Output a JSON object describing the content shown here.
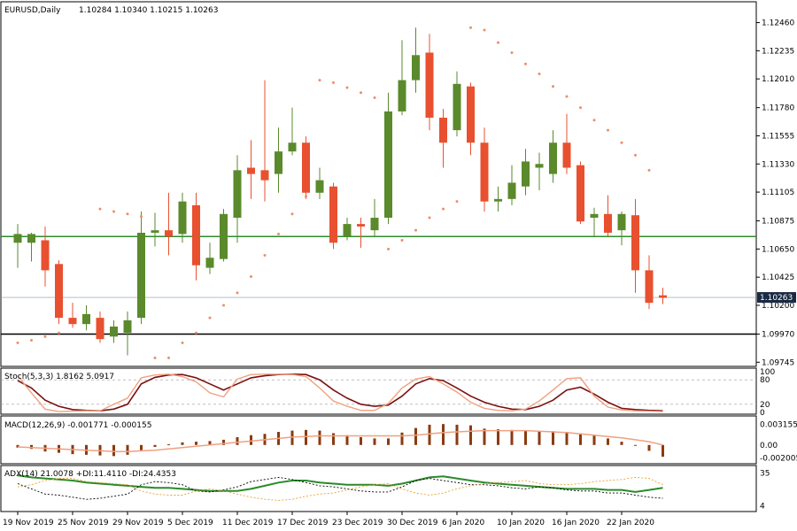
{
  "colors": {
    "bull": "#5a8a2c",
    "bear": "#e8502f",
    "sar": "#e8906a",
    "stoch_main": "#7a1010",
    "stoch_signal": "#f0a080",
    "macd_hist": "#8b3a10",
    "macd_signal": "#f0a080",
    "adx": "#2a8a2a",
    "plus_di": "#000000",
    "minus_di": "#e8a030",
    "hline_green": "#2e8b2e",
    "hline_black": "#000000",
    "frame": "#000000",
    "grid": "#999999"
  },
  "chart_data": [
    {
      "type": "candlestick",
      "title": "EURUSD,Daily",
      "ohlc_text": "1.10284 1.10340 1.10215 1.10263",
      "price_axis_ticks": [
        "1.12460",
        "1.12235",
        "1.12010",
        "1.11780",
        "1.11555",
        "1.11330",
        "1.11105",
        "1.10875",
        "1.10650",
        "1.10425",
        "1.10200",
        "1.09970",
        "1.09745"
      ],
      "ylim": [
        1.0974,
        1.1257
      ],
      "current_price": 1.10263,
      "current_price_label": "1.10263",
      "x_labels": [
        {
          "i": 0,
          "label": "19 Nov 2019"
        },
        {
          "i": 4,
          "label": "25 Nov 2019"
        },
        {
          "i": 8,
          "label": "29 Nov 2019"
        },
        {
          "i": 12,
          "label": "5 Dec 2019"
        },
        {
          "i": 16,
          "label": "11 Dec 2019"
        },
        {
          "i": 20,
          "label": "17 Dec 2019"
        },
        {
          "i": 24,
          "label": "23 Dec 2019"
        },
        {
          "i": 28,
          "label": "30 Dec 2019"
        },
        {
          "i": 32,
          "label": "6 Jan 2020"
        },
        {
          "i": 36,
          "label": "10 Jan 2020"
        },
        {
          "i": 40,
          "label": "16 Jan 2020"
        },
        {
          "i": 44,
          "label": "22 Jan 2020"
        }
      ],
      "horizontal_levels": [
        {
          "price": 1.1075,
          "color": "hline_green"
        },
        {
          "price": 1.0997,
          "color": "hline_black"
        }
      ],
      "candles": [
        {
          "o": 1.107,
          "h": 1.1085,
          "l": 1.105,
          "c": 1.1077
        },
        {
          "o": 1.107,
          "h": 1.1078,
          "l": 1.1055,
          "c": 1.1077
        },
        {
          "o": 1.1072,
          "h": 1.1083,
          "l": 1.1035,
          "c": 1.1048
        },
        {
          "o": 1.1053,
          "h": 1.1056,
          "l": 1.1005,
          "c": 1.101
        },
        {
          "o": 1.101,
          "h": 1.1022,
          "l": 1.1002,
          "c": 1.1005
        },
        {
          "o": 1.1005,
          "h": 1.102,
          "l": 1.1,
          "c": 1.1013
        },
        {
          "o": 1.101,
          "h": 1.1015,
          "l": 1.099,
          "c": 1.0993
        },
        {
          "o": 1.0995,
          "h": 1.1008,
          "l": 1.099,
          "c": 1.1003
        },
        {
          "o": 1.0998,
          "h": 1.1015,
          "l": 1.098,
          "c": 1.1008
        },
        {
          "o": 1.101,
          "h": 1.1095,
          "l": 1.1005,
          "c": 1.1078
        },
        {
          "o": 1.1078,
          "h": 1.1094,
          "l": 1.1067,
          "c": 1.108
        },
        {
          "o": 1.108,
          "h": 1.111,
          "l": 1.106,
          "c": 1.1075
        },
        {
          "o": 1.1077,
          "h": 1.111,
          "l": 1.107,
          "c": 1.1103
        },
        {
          "o": 1.11,
          "h": 1.111,
          "l": 1.104,
          "c": 1.1052
        },
        {
          "o": 1.105,
          "h": 1.107,
          "l": 1.1045,
          "c": 1.1058
        },
        {
          "o": 1.1057,
          "h": 1.1097,
          "l": 1.1055,
          "c": 1.1093
        },
        {
          "o": 1.109,
          "h": 1.114,
          "l": 1.107,
          "c": 1.1128
        },
        {
          "o": 1.113,
          "h": 1.1152,
          "l": 1.1105,
          "c": 1.1125
        },
        {
          "o": 1.1128,
          "h": 1.12,
          "l": 1.1103,
          "c": 1.112
        },
        {
          "o": 1.1125,
          "h": 1.1162,
          "l": 1.111,
          "c": 1.1143
        },
        {
          "o": 1.1143,
          "h": 1.1178,
          "l": 1.114,
          "c": 1.115
        },
        {
          "o": 1.115,
          "h": 1.1155,
          "l": 1.1105,
          "c": 1.111
        },
        {
          "o": 1.111,
          "h": 1.113,
          "l": 1.1105,
          "c": 1.112
        },
        {
          "o": 1.1115,
          "h": 1.1118,
          "l": 1.1065,
          "c": 1.107
        },
        {
          "o": 1.1075,
          "h": 1.109,
          "l": 1.1072,
          "c": 1.1085
        },
        {
          "o": 1.1085,
          "h": 1.109,
          "l": 1.1066,
          "c": 1.1083
        },
        {
          "o": 1.108,
          "h": 1.1105,
          "l": 1.1075,
          "c": 1.109
        },
        {
          "o": 1.109,
          "h": 1.119,
          "l": 1.1085,
          "c": 1.1175
        },
        {
          "o": 1.1175,
          "h": 1.1232,
          "l": 1.1172,
          "c": 1.12
        },
        {
          "o": 1.12,
          "h": 1.1242,
          "l": 1.119,
          "c": 1.122
        },
        {
          "o": 1.1222,
          "h": 1.1237,
          "l": 1.116,
          "c": 1.117
        },
        {
          "o": 1.117,
          "h": 1.1177,
          "l": 1.113,
          "c": 1.115
        },
        {
          "o": 1.116,
          "h": 1.1207,
          "l": 1.1155,
          "c": 1.1197
        },
        {
          "o": 1.1195,
          "h": 1.1198,
          "l": 1.114,
          "c": 1.115
        },
        {
          "o": 1.115,
          "h": 1.1162,
          "l": 1.1095,
          "c": 1.1103
        },
        {
          "o": 1.1103,
          "h": 1.1115,
          "l": 1.1095,
          "c": 1.1105
        },
        {
          "o": 1.1105,
          "h": 1.1132,
          "l": 1.11,
          "c": 1.1118
        },
        {
          "o": 1.1115,
          "h": 1.1145,
          "l": 1.1108,
          "c": 1.1135
        },
        {
          "o": 1.113,
          "h": 1.1142,
          "l": 1.1112,
          "c": 1.1133
        },
        {
          "o": 1.1125,
          "h": 1.116,
          "l": 1.1118,
          "c": 1.115
        },
        {
          "o": 1.115,
          "h": 1.1173,
          "l": 1.1125,
          "c": 1.113
        },
        {
          "o": 1.1132,
          "h": 1.1135,
          "l": 1.1085,
          "c": 1.1087
        },
        {
          "o": 1.109,
          "h": 1.1098,
          "l": 1.1075,
          "c": 1.1093
        },
        {
          "o": 1.1093,
          "h": 1.1108,
          "l": 1.1075,
          "c": 1.1078
        },
        {
          "o": 1.108,
          "h": 1.1095,
          "l": 1.1068,
          "c": 1.1093
        },
        {
          "o": 1.1092,
          "h": 1.1105,
          "l": 1.103,
          "c": 1.1048
        },
        {
          "o": 1.1048,
          "h": 1.106,
          "l": 1.1017,
          "c": 1.1022
        },
        {
          "o": 1.1028,
          "h": 1.1034,
          "l": 1.1021,
          "c": 1.1026
        }
      ],
      "parabolic_sar": [
        {
          "i": 0,
          "v": 1.099
        },
        {
          "i": 1,
          "v": 1.0992
        },
        {
          "i": 2,
          "v": 1.0995
        },
        {
          "i": 3,
          "v": 1.0998
        },
        {
          "i": 6,
          "v": 1.1097
        },
        {
          "i": 7,
          "v": 1.1095
        },
        {
          "i": 8,
          "v": 1.1093
        },
        {
          "i": 9,
          "v": 1.1091
        },
        {
          "i": 10,
          "v": 1.0978
        },
        {
          "i": 11,
          "v": 1.0978
        },
        {
          "i": 12,
          "v": 1.099
        },
        {
          "i": 13,
          "v": 1.0998
        },
        {
          "i": 14,
          "v": 1.101
        },
        {
          "i": 15,
          "v": 1.102
        },
        {
          "i": 16,
          "v": 1.103
        },
        {
          "i": 17,
          "v": 1.1043
        },
        {
          "i": 18,
          "v": 1.106
        },
        {
          "i": 19,
          "v": 1.1077
        },
        {
          "i": 20,
          "v": 1.1093
        },
        {
          "i": 21,
          "v": 1.1107
        },
        {
          "i": 22,
          "v": 1.12
        },
        {
          "i": 23,
          "v": 1.1198
        },
        {
          "i": 24,
          "v": 1.1194
        },
        {
          "i": 25,
          "v": 1.119
        },
        {
          "i": 26,
          "v": 1.1186
        },
        {
          "i": 27,
          "v": 1.1065
        },
        {
          "i": 28,
          "v": 1.1072
        },
        {
          "i": 29,
          "v": 1.108
        },
        {
          "i": 30,
          "v": 1.109
        },
        {
          "i": 31,
          "v": 1.1097
        },
        {
          "i": 32,
          "v": 1.1103
        },
        {
          "i": 33,
          "v": 1.1242
        },
        {
          "i": 34,
          "v": 1.124
        },
        {
          "i": 35,
          "v": 1.123
        },
        {
          "i": 36,
          "v": 1.1222
        },
        {
          "i": 37,
          "v": 1.1213
        },
        {
          "i": 38,
          "v": 1.1205
        },
        {
          "i": 39,
          "v": 1.1195
        },
        {
          "i": 40,
          "v": 1.1187
        },
        {
          "i": 41,
          "v": 1.1178
        },
        {
          "i": 42,
          "v": 1.1168
        },
        {
          "i": 43,
          "v": 1.116
        },
        {
          "i": 44,
          "v": 1.115
        },
        {
          "i": 45,
          "v": 1.114
        },
        {
          "i": 46,
          "v": 1.1128
        }
      ]
    },
    {
      "type": "line",
      "title": "Stoch(5,3,3) 1.8162 5.0917",
      "ylim": [
        0,
        100
      ],
      "levels": [
        80,
        20
      ],
      "axis_ticks": [
        "100",
        "80",
        "20",
        "0"
      ],
      "series": [
        {
          "name": "main",
          "color": "stoch_main",
          "values": [
            78,
            60,
            30,
            15,
            7,
            5,
            4,
            8,
            20,
            70,
            86,
            92,
            93,
            85,
            70,
            55,
            70,
            85,
            90,
            93,
            94,
            93,
            80,
            55,
            35,
            20,
            15,
            18,
            40,
            70,
            83,
            78,
            60,
            40,
            25,
            15,
            8,
            7,
            15,
            30,
            55,
            62,
            45,
            25,
            10,
            7,
            5,
            4
          ]
        },
        {
          "name": "signal",
          "color": "stoch_signal",
          "values": [
            90,
            48,
            8,
            2,
            3,
            4,
            4,
            20,
            35,
            85,
            92,
            94,
            88,
            75,
            48,
            38,
            82,
            93,
            94,
            94,
            93,
            88,
            60,
            28,
            15,
            5,
            5,
            22,
            60,
            82,
            88,
            70,
            50,
            25,
            10,
            5,
            4,
            8,
            28,
            55,
            83,
            85,
            40,
            13,
            6,
            4,
            3,
            2
          ]
        }
      ]
    },
    {
      "type": "bar",
      "title": "MACD(12,26,9) -0.001771 -0.000155",
      "ylim": [
        -0.0026,
        0.0039
      ],
      "axis_ticks": [
        {
          "v": 0.00315,
          "label": "0.003155"
        },
        {
          "v": 0.0,
          "label": "0.00"
        },
        {
          "v": -0.002005,
          "label": "-0.002005"
        }
      ],
      "histogram": [
        -0.0004,
        -0.0006,
        -0.001,
        -0.0012,
        -0.0014,
        -0.0015,
        -0.0016,
        -0.0017,
        -0.0015,
        -0.0008,
        -0.0003,
        0.0001,
        0.0004,
        0.0005,
        0.0006,
        0.0008,
        0.0012,
        0.0015,
        0.0017,
        0.002,
        0.0022,
        0.0023,
        0.0022,
        0.0018,
        0.0015,
        0.0012,
        0.001,
        0.001,
        0.0019,
        0.0026,
        0.0031,
        0.0032,
        0.0031,
        0.003,
        0.0025,
        0.0024,
        0.0023,
        0.0022,
        0.0021,
        0.0021,
        0.002,
        0.0018,
        0.0015,
        0.001,
        0.0005,
        -0.0001,
        -0.0009,
        -0.0018
      ],
      "signal": [
        -0.0003,
        -0.0004,
        -0.0005,
        -0.0006,
        -0.0007,
        -0.0008,
        -0.0009,
        -0.001,
        -0.001,
        -0.0009,
        -0.0008,
        -0.0006,
        -0.0004,
        -0.0002,
        0.0,
        0.0002,
        0.0004,
        0.0006,
        0.0008,
        0.001,
        0.0012,
        0.0013,
        0.0014,
        0.0014,
        0.0014,
        0.0014,
        0.0014,
        0.0014,
        0.0014,
        0.0015,
        0.0017,
        0.0019,
        0.002,
        0.0021,
        0.0022,
        0.0022,
        0.0022,
        0.0022,
        0.0021,
        0.002,
        0.0019,
        0.0017,
        0.0015,
        0.0013,
        0.0011,
        0.0008,
        0.0005,
        0.0
      ]
    },
    {
      "type": "line",
      "title": "ADX(14) 21.0078 +DI:11.4110 -DI:24.4353",
      "ylim": [
        0,
        39
      ],
      "axis_ticks": [
        {
          "v": 35,
          "label": "35"
        },
        {
          "v": 4,
          "label": "4"
        }
      ],
      "series": [
        {
          "name": "ADX",
          "color": "adx",
          "values": [
            33,
            31,
            30,
            29,
            28,
            26,
            25,
            24,
            23,
            22,
            21,
            21,
            20,
            19,
            18,
            18,
            18,
            20,
            23,
            26,
            28,
            28,
            26,
            25,
            24,
            24,
            24,
            23,
            25,
            28,
            31,
            32,
            30,
            28,
            26,
            25,
            24,
            23,
            22,
            21,
            20,
            20,
            20,
            19,
            19,
            17,
            19,
            21
          ]
        },
        {
          "name": "+DI",
          "color": "plus_di",
          "values": [
            25,
            20,
            15,
            14,
            12,
            10,
            11,
            13,
            15,
            24,
            27,
            26,
            24,
            18,
            17,
            19,
            22,
            27,
            29,
            31,
            29,
            26,
            23,
            22,
            20,
            18,
            17,
            17,
            22,
            28,
            30,
            28,
            26,
            24,
            24,
            23,
            21,
            20,
            22,
            21,
            19,
            18,
            18,
            16,
            16,
            14,
            12,
            11
          ]
        },
        {
          "name": "-DI",
          "color": "minus_di",
          "values": [
            22,
            24,
            28,
            30,
            30,
            27,
            26,
            25,
            24,
            18,
            15,
            14,
            14,
            18,
            20,
            18,
            15,
            12,
            10,
            9,
            10,
            13,
            15,
            16,
            19,
            22,
            24,
            25,
            20,
            16,
            14,
            16,
            20,
            23,
            25,
            26,
            27,
            28,
            25,
            24,
            24,
            25,
            27,
            28,
            29,
            31,
            30,
            24
          ]
        }
      ]
    }
  ]
}
